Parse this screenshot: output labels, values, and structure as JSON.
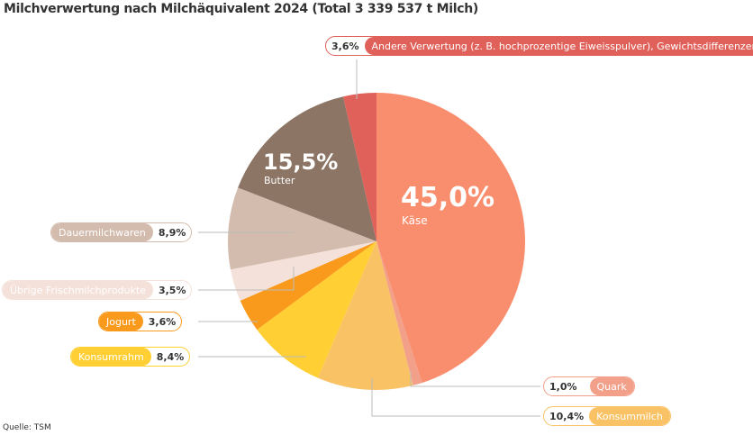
{
  "chart_data": {
    "type": "pie",
    "title": "Milchverwertung nach Milchäquivalent 2024 (Total 3 339 537 t Milch)",
    "source": "Quelle: TSM",
    "slices": [
      {
        "label": "Käse",
        "value": 45.0,
        "display": "45,0%",
        "color": "#F98E6E"
      },
      {
        "label": "Quark",
        "value": 1.0,
        "display": "1,0%",
        "color": "#F2A08A"
      },
      {
        "label": "Konsummilch",
        "value": 10.4,
        "display": "10,4%",
        "color": "#F9C265"
      },
      {
        "label": "Konsumrahm",
        "value": 8.4,
        "display": "8,4%",
        "color": "#FFCF33"
      },
      {
        "label": "Jogurt",
        "value": 3.6,
        "display": "3,6%",
        "color": "#F99A1C"
      },
      {
        "label": "Übrige Frischmilchprodukte",
        "value": 3.5,
        "display": "3,5%",
        "color": "#F4E1DA"
      },
      {
        "label": "Dauermilchwaren",
        "value": 8.9,
        "display": "8,9%",
        "color": "#D3BCAE"
      },
      {
        "label": "Butter",
        "value": 15.5,
        "display": "15,5%",
        "color": "#8C7565"
      },
      {
        "label": "Andere Verwertung (z. B. hochprozentige Eiweisspulver), Gewichtsdifferenzen",
        "value": 3.6,
        "display": "3,6%",
        "color": "#E0605A"
      }
    ]
  }
}
